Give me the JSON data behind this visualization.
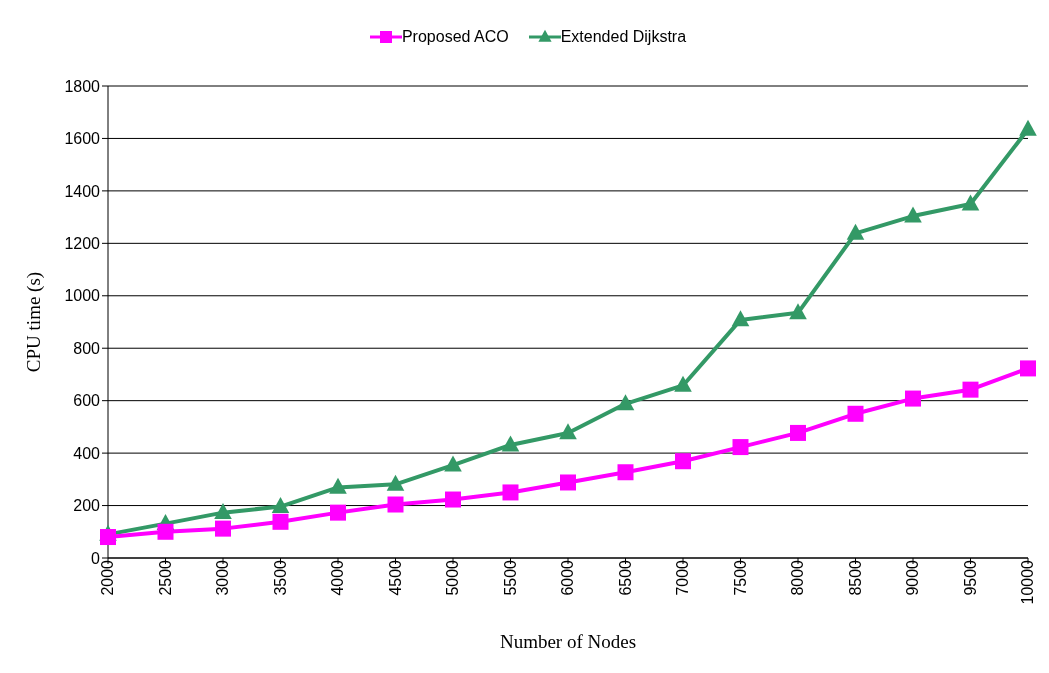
{
  "chart_data": {
    "type": "line",
    "xlabel": "Number of Nodes",
    "ylabel": "CPU time (s)",
    "categories": [
      "2000",
      "2500",
      "3000",
      "3500",
      "4000",
      "4500",
      "5000",
      "5500",
      "6000",
      "6500",
      "7000",
      "7500",
      "8000",
      "8500",
      "9000",
      "9500",
      "10000"
    ],
    "series": [
      {
        "name": "Proposed ACO",
        "color": "#ff00ff",
        "marker": "square",
        "values": [
          80,
          100,
          112,
          138,
          173,
          204,
          223,
          250,
          288,
          327,
          369,
          423,
          477,
          550,
          608,
          642,
          723
        ]
      },
      {
        "name": "Extended Dijkstra",
        "color": "#339966",
        "marker": "triangle",
        "values": [
          90,
          131,
          173,
          196,
          269,
          281,
          354,
          431,
          477,
          588,
          658,
          908,
          935,
          1238,
          1304,
          1350,
          1635
        ]
      }
    ],
    "ylim": [
      0,
      1800
    ],
    "yticks": [
      0,
      200,
      400,
      600,
      800,
      1000,
      1200,
      1400,
      1600,
      1800
    ],
    "grid": "y",
    "legend": "top"
  }
}
